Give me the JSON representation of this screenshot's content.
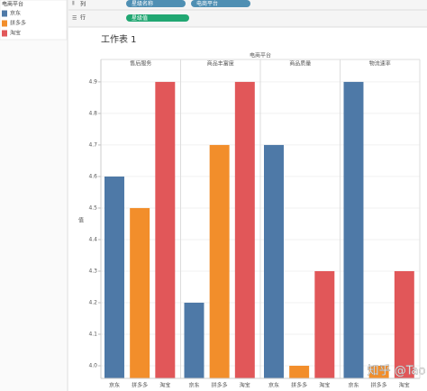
{
  "ui": {
    "legend_title": "电商平台",
    "columns_label": "列",
    "rows_label": "行",
    "column_pills": [
      "星级名称",
      "电商平台"
    ],
    "row_pills": [
      "星级值"
    ],
    "sheet_title": "工作表 1",
    "watermark": "知乎 @Tao"
  },
  "chart_data": {
    "type": "bar",
    "header": "电商平台",
    "y_label": "值",
    "categories": [
      "售后服务",
      "商品丰富度",
      "商品质量",
      "物流速率"
    ],
    "series": [
      {
        "name": "京东",
        "color": "#4e79a7",
        "values": [
          4.6,
          4.2,
          4.7,
          4.9
        ]
      },
      {
        "name": "拼多多",
        "color": "#f28e2b",
        "values": [
          4.5,
          4.7,
          4.0,
          4.0
        ]
      },
      {
        "name": "淘宝",
        "color": "#e15759",
        "values": [
          4.9,
          4.9,
          4.3,
          4.3
        ]
      }
    ],
    "ylim": [
      3.96,
      4.934
    ],
    "yticks": [
      {
        "value": 4.0,
        "label": "4.0"
      },
      4.1,
      4.2,
      4.3,
      4.4,
      4.5,
      4.6,
      4.7,
      4.8,
      4.9
    ],
    "grid": true,
    "legend": "left"
  }
}
